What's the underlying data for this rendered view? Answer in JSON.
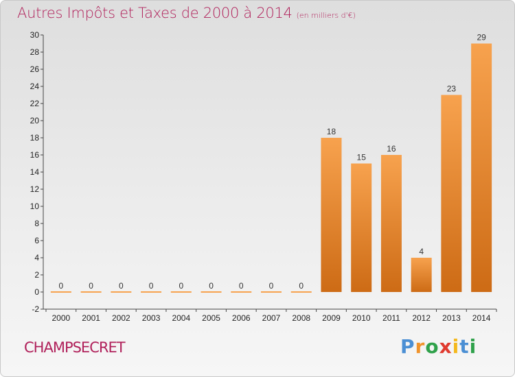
{
  "header": {
    "title": "Autres Impôts et Taxes de 2000 à 2014",
    "subtitle": "(en milliers d'€)"
  },
  "footer": {
    "commune": "CHAMPSECRET",
    "logo": [
      "P",
      "r",
      "o",
      "x",
      "i",
      "t",
      "i"
    ]
  },
  "colors": {
    "title": "#b0205a",
    "bar_light": "#f7a24e",
    "bar_dark": "#cd6b15",
    "logo": [
      "#4b8fd4",
      "#f0932b",
      "#2fa14a",
      "#e03a2f",
      "#f4b81e",
      "#4b8fd4",
      "#2fa14a"
    ]
  },
  "chart_data": {
    "type": "bar",
    "title": "Autres Impôts et Taxes de 2000 à 2014",
    "subtitle": "(en milliers d'€)",
    "xlabel": "",
    "ylabel": "",
    "categories": [
      "2000",
      "2001",
      "2002",
      "2003",
      "2004",
      "2005",
      "2006",
      "2007",
      "2008",
      "2009",
      "2010",
      "2011",
      "2012",
      "2013",
      "2014"
    ],
    "values": [
      0,
      0,
      0,
      0,
      0,
      0,
      0,
      0,
      0,
      18,
      15,
      16,
      4,
      23,
      29
    ],
    "ylim": [
      -2,
      30
    ],
    "yticks": [
      -2,
      0,
      2,
      4,
      6,
      8,
      10,
      12,
      14,
      16,
      18,
      20,
      22,
      24,
      26,
      28,
      30
    ],
    "grid": false,
    "data_labels": true
  }
}
